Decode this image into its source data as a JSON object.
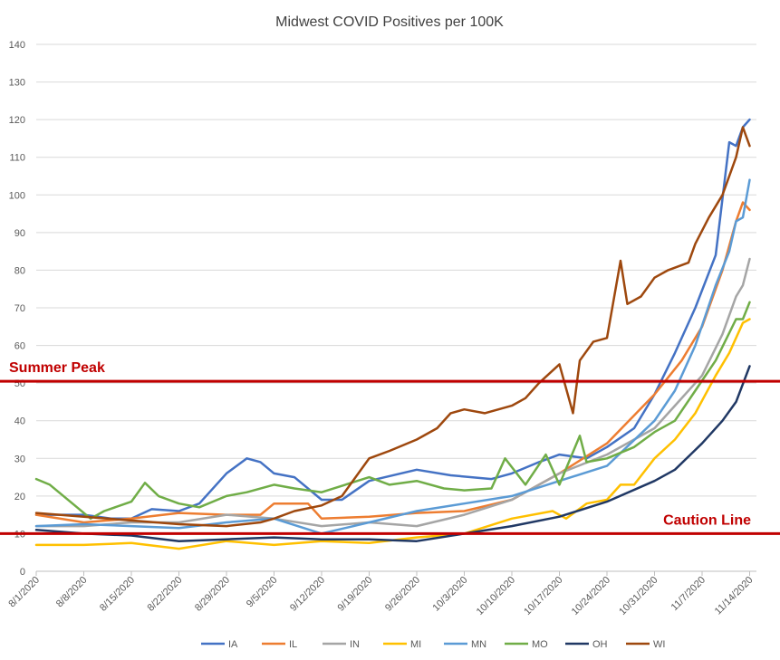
{
  "chart_data": {
    "type": "line",
    "title": "Midwest COVID Positives per 100K",
    "xlabel": "",
    "ylabel": "",
    "ylim": [
      0,
      140
    ],
    "yticks": [
      0,
      10,
      20,
      30,
      40,
      50,
      60,
      70,
      80,
      90,
      100,
      110,
      120,
      130,
      140
    ],
    "xlim": [
      "2020-08-01",
      "2020-11-15"
    ],
    "xtick_labels": [
      "8/1/2020",
      "8/8/2020",
      "8/15/2020",
      "8/22/2020",
      "8/29/2020",
      "9/5/2020",
      "9/12/2020",
      "9/19/2020",
      "9/26/2020",
      "10/3/2020",
      "10/10/2020",
      "10/17/2020",
      "10/24/2020",
      "10/31/2020",
      "11/7/2020",
      "11/14/2020"
    ],
    "grid": "horizontal",
    "legend_position": "bottom",
    "reference_lines": [
      {
        "label": "Summer Peak",
        "value": 50.5,
        "color": "#c00000"
      },
      {
        "label": "Caution Line",
        "value": 10,
        "color": "#c00000"
      }
    ],
    "series": [
      {
        "name": "IA",
        "color": "#4472c4",
        "points": [
          [
            "2020-08-01",
            15
          ],
          [
            "2020-08-08",
            15
          ],
          [
            "2020-08-12",
            14
          ],
          [
            "2020-08-15",
            14
          ],
          [
            "2020-08-18",
            16.5
          ],
          [
            "2020-08-22",
            16
          ],
          [
            "2020-08-25",
            18
          ],
          [
            "2020-08-29",
            26
          ],
          [
            "2020-09-01",
            30
          ],
          [
            "2020-09-03",
            29
          ],
          [
            "2020-09-05",
            26
          ],
          [
            "2020-09-08",
            25
          ],
          [
            "2020-09-12",
            19
          ],
          [
            "2020-09-15",
            19
          ],
          [
            "2020-09-19",
            24
          ],
          [
            "2020-09-26",
            27
          ],
          [
            "2020-10-01",
            25.5
          ],
          [
            "2020-10-07",
            24.5
          ],
          [
            "2020-10-10",
            26
          ],
          [
            "2020-10-14",
            29
          ],
          [
            "2020-10-17",
            31
          ],
          [
            "2020-10-21",
            30
          ],
          [
            "2020-10-24",
            33
          ],
          [
            "2020-10-28",
            38
          ],
          [
            "2020-10-31",
            47
          ],
          [
            "2020-11-03",
            58
          ],
          [
            "2020-11-06",
            70
          ],
          [
            "2020-11-09",
            84
          ],
          [
            "2020-11-11",
            114
          ],
          [
            "2020-11-12",
            113
          ],
          [
            "2020-11-13",
            118
          ],
          [
            "2020-11-14",
            120
          ]
        ]
      },
      {
        "name": "IL",
        "color": "#ed7d31",
        "points": [
          [
            "2020-08-01",
            15
          ],
          [
            "2020-08-08",
            13
          ],
          [
            "2020-08-15",
            14
          ],
          [
            "2020-08-22",
            15.5
          ],
          [
            "2020-08-29",
            15
          ],
          [
            "2020-09-03",
            15
          ],
          [
            "2020-09-05",
            18
          ],
          [
            "2020-09-08",
            18
          ],
          [
            "2020-09-10",
            18
          ],
          [
            "2020-09-12",
            14
          ],
          [
            "2020-09-19",
            14.5
          ],
          [
            "2020-09-26",
            15.5
          ],
          [
            "2020-10-03",
            16
          ],
          [
            "2020-10-10",
            19
          ],
          [
            "2020-10-17",
            26
          ],
          [
            "2020-10-24",
            34
          ],
          [
            "2020-10-31",
            47
          ],
          [
            "2020-11-04",
            56
          ],
          [
            "2020-11-07",
            65
          ],
          [
            "2020-11-10",
            80
          ],
          [
            "2020-11-12",
            93
          ],
          [
            "2020-11-13",
            98
          ],
          [
            "2020-11-14",
            96
          ]
        ]
      },
      {
        "name": "IN",
        "color": "#a5a5a5",
        "points": [
          [
            "2020-08-01",
            12
          ],
          [
            "2020-08-08",
            12
          ],
          [
            "2020-08-15",
            13
          ],
          [
            "2020-08-22",
            13
          ],
          [
            "2020-08-29",
            15
          ],
          [
            "2020-09-05",
            14
          ],
          [
            "2020-09-12",
            12
          ],
          [
            "2020-09-19",
            13
          ],
          [
            "2020-09-26",
            12
          ],
          [
            "2020-10-03",
            15
          ],
          [
            "2020-10-10",
            19
          ],
          [
            "2020-10-17",
            26
          ],
          [
            "2020-10-24",
            31
          ],
          [
            "2020-10-31",
            38
          ],
          [
            "2020-11-03",
            44
          ],
          [
            "2020-11-07",
            52
          ],
          [
            "2020-11-10",
            63
          ],
          [
            "2020-11-12",
            73
          ],
          [
            "2020-11-13",
            76
          ],
          [
            "2020-11-14",
            83
          ]
        ]
      },
      {
        "name": "MI",
        "color": "#ffc000",
        "points": [
          [
            "2020-08-01",
            7
          ],
          [
            "2020-08-08",
            7
          ],
          [
            "2020-08-15",
            7.5
          ],
          [
            "2020-08-22",
            6
          ],
          [
            "2020-08-29",
            8
          ],
          [
            "2020-09-05",
            7
          ],
          [
            "2020-09-12",
            8
          ],
          [
            "2020-09-19",
            7.5
          ],
          [
            "2020-09-26",
            9
          ],
          [
            "2020-10-03",
            10
          ],
          [
            "2020-10-10",
            14
          ],
          [
            "2020-10-16",
            16
          ],
          [
            "2020-10-18",
            14
          ],
          [
            "2020-10-21",
            18
          ],
          [
            "2020-10-24",
            19
          ],
          [
            "2020-10-26",
            23
          ],
          [
            "2020-10-28",
            23
          ],
          [
            "2020-10-31",
            30
          ],
          [
            "2020-11-03",
            35
          ],
          [
            "2020-11-06",
            42
          ],
          [
            "2020-11-09",
            52
          ],
          [
            "2020-11-11",
            58
          ],
          [
            "2020-11-13",
            66
          ],
          [
            "2020-11-14",
            67
          ]
        ]
      },
      {
        "name": "MN",
        "color": "#5b9bd5",
        "points": [
          [
            "2020-08-01",
            12
          ],
          [
            "2020-08-08",
            12.5
          ],
          [
            "2020-08-15",
            12
          ],
          [
            "2020-08-22",
            11.5
          ],
          [
            "2020-08-29",
            13
          ],
          [
            "2020-09-05",
            14
          ],
          [
            "2020-09-12",
            10
          ],
          [
            "2020-09-19",
            13
          ],
          [
            "2020-09-26",
            16
          ],
          [
            "2020-10-03",
            18
          ],
          [
            "2020-10-10",
            20
          ],
          [
            "2020-10-17",
            24
          ],
          [
            "2020-10-24",
            28
          ],
          [
            "2020-10-31",
            40
          ],
          [
            "2020-11-03",
            48
          ],
          [
            "2020-11-06",
            60
          ],
          [
            "2020-11-09",
            76
          ],
          [
            "2020-11-11",
            85
          ],
          [
            "2020-11-12",
            93
          ],
          [
            "2020-11-13",
            94
          ],
          [
            "2020-11-14",
            104
          ]
        ]
      },
      {
        "name": "MO",
        "color": "#70ad47",
        "points": [
          [
            "2020-08-01",
            24.5
          ],
          [
            "2020-08-03",
            23
          ],
          [
            "2020-08-07",
            17
          ],
          [
            "2020-08-09",
            14
          ],
          [
            "2020-08-11",
            16
          ],
          [
            "2020-08-15",
            18.5
          ],
          [
            "2020-08-17",
            23.5
          ],
          [
            "2020-08-19",
            20
          ],
          [
            "2020-08-22",
            18
          ],
          [
            "2020-08-25",
            17
          ],
          [
            "2020-08-29",
            20
          ],
          [
            "2020-09-01",
            21
          ],
          [
            "2020-09-05",
            23
          ],
          [
            "2020-09-08",
            22
          ],
          [
            "2020-09-12",
            21
          ],
          [
            "2020-09-19",
            25
          ],
          [
            "2020-09-22",
            23
          ],
          [
            "2020-09-26",
            24
          ],
          [
            "2020-09-30",
            22
          ],
          [
            "2020-10-03",
            21.5
          ],
          [
            "2020-10-07",
            22
          ],
          [
            "2020-10-09",
            30
          ],
          [
            "2020-10-12",
            23
          ],
          [
            "2020-10-15",
            31
          ],
          [
            "2020-10-17",
            23
          ],
          [
            "2020-10-20",
            36
          ],
          [
            "2020-10-21",
            29
          ],
          [
            "2020-10-24",
            30
          ],
          [
            "2020-10-28",
            33
          ],
          [
            "2020-10-31",
            37
          ],
          [
            "2020-11-03",
            40
          ],
          [
            "2020-11-06",
            48
          ],
          [
            "2020-11-09",
            56
          ],
          [
            "2020-11-12",
            67
          ],
          [
            "2020-11-13",
            67
          ],
          [
            "2020-11-14",
            71.5
          ]
        ]
      },
      {
        "name": "OH",
        "color": "#203864",
        "points": [
          [
            "2020-08-01",
            11
          ],
          [
            "2020-08-08",
            10
          ],
          [
            "2020-08-15",
            9.5
          ],
          [
            "2020-08-22",
            8
          ],
          [
            "2020-08-29",
            8.5
          ],
          [
            "2020-09-05",
            9
          ],
          [
            "2020-09-12",
            8.5
          ],
          [
            "2020-09-19",
            8.5
          ],
          [
            "2020-09-26",
            8
          ],
          [
            "2020-10-03",
            10
          ],
          [
            "2020-10-10",
            12
          ],
          [
            "2020-10-17",
            14.5
          ],
          [
            "2020-10-24",
            18.5
          ],
          [
            "2020-10-31",
            24
          ],
          [
            "2020-11-03",
            27
          ],
          [
            "2020-11-07",
            34
          ],
          [
            "2020-11-10",
            40
          ],
          [
            "2020-11-12",
            45
          ],
          [
            "2020-11-14",
            54.5
          ]
        ]
      },
      {
        "name": "WI",
        "color": "#9e480e",
        "points": [
          [
            "2020-08-01",
            15.5
          ],
          [
            "2020-08-08",
            14.5
          ],
          [
            "2020-08-15",
            13.5
          ],
          [
            "2020-08-22",
            12.5
          ],
          [
            "2020-08-29",
            12
          ],
          [
            "2020-09-03",
            13
          ],
          [
            "2020-09-05",
            14
          ],
          [
            "2020-09-08",
            16
          ],
          [
            "2020-09-12",
            17.5
          ],
          [
            "2020-09-15",
            20
          ],
          [
            "2020-09-19",
            30
          ],
          [
            "2020-09-22",
            32
          ],
          [
            "2020-09-26",
            35
          ],
          [
            "2020-09-29",
            38
          ],
          [
            "2020-10-01",
            42
          ],
          [
            "2020-10-03",
            43
          ],
          [
            "2020-10-06",
            42
          ],
          [
            "2020-10-10",
            44
          ],
          [
            "2020-10-12",
            46
          ],
          [
            "2020-10-14",
            50
          ],
          [
            "2020-10-17",
            55
          ],
          [
            "2020-10-19",
            42
          ],
          [
            "2020-10-20",
            56
          ],
          [
            "2020-10-22",
            61
          ],
          [
            "2020-10-24",
            62
          ],
          [
            "2020-10-26",
            82.5
          ],
          [
            "2020-10-27",
            71
          ],
          [
            "2020-10-29",
            73
          ],
          [
            "2020-10-31",
            78
          ],
          [
            "2020-11-02",
            80
          ],
          [
            "2020-11-05",
            82
          ],
          [
            "2020-11-06",
            87
          ],
          [
            "2020-11-08",
            94
          ],
          [
            "2020-11-10",
            100
          ],
          [
            "2020-11-12",
            110
          ],
          [
            "2020-11-13",
            118
          ],
          [
            "2020-11-14",
            113
          ]
        ]
      }
    ]
  }
}
